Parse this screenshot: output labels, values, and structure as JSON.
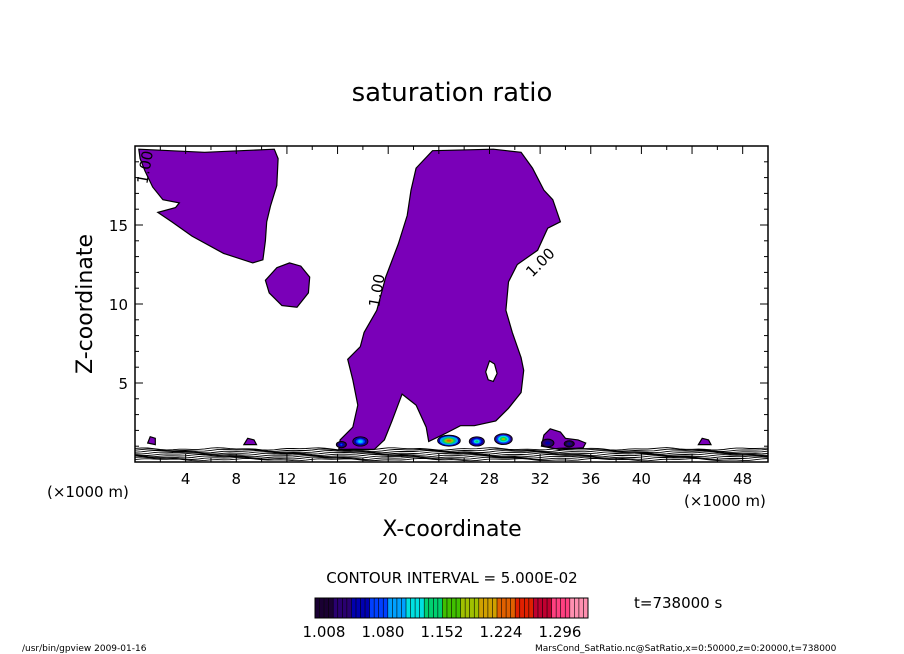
{
  "chart_data": {
    "type": "heatmap",
    "title": "saturation ratio",
    "xlabel": "X-coordinate",
    "ylabel": "Z-coordinate",
    "x_unit_left": "(×1000 m)",
    "x_unit_right": "(×1000 m)",
    "xlim": [
      0,
      50
    ],
    "ylim": [
      0,
      20
    ],
    "x_ticks": [
      4,
      8,
      12,
      16,
      20,
      24,
      28,
      32,
      36,
      40,
      44,
      48
    ],
    "y_ticks": [
      5,
      10,
      15
    ],
    "contour_labels": [
      {
        "text": "1.00",
        "x": 1.2,
        "z": 18.6,
        "angle": -80
      },
      {
        "text": "1.00",
        "x": 19.5,
        "z": 10.8,
        "angle": -80
      },
      {
        "text": "1.00",
        "x": 32.3,
        "z": 12.4,
        "angle": -45
      }
    ],
    "regions": [
      {
        "level": 1.0,
        "color": "#7a00b8",
        "points": [
          [
            0.3,
            19.8
          ],
          [
            5.5,
            19.6
          ],
          [
            11,
            19.8
          ],
          [
            11.3,
            19.2
          ],
          [
            11.2,
            17.5
          ],
          [
            10.7,
            16.2
          ],
          [
            10.4,
            15.2
          ],
          [
            10.3,
            14
          ],
          [
            10.1,
            12.8
          ],
          [
            9.3,
            12.6
          ],
          [
            7,
            13.2
          ],
          [
            4.5,
            14.3
          ],
          [
            2.9,
            15.2
          ],
          [
            1.8,
            15.8
          ],
          [
            3.2,
            16.1
          ],
          [
            3.5,
            16.4
          ],
          [
            2.2,
            16.6
          ],
          [
            1.4,
            17.4
          ],
          [
            0.8,
            18.4
          ],
          [
            0.4,
            19.2
          ]
        ]
      },
      {
        "level": 1.0,
        "color": "#7a00b8",
        "points": [
          [
            11.2,
            12.3
          ],
          [
            12.2,
            12.6
          ],
          [
            13.1,
            12.4
          ],
          [
            13.8,
            11.7
          ],
          [
            13.7,
            10.7
          ],
          [
            12.8,
            9.8
          ],
          [
            11.6,
            9.9
          ],
          [
            10.6,
            10.7
          ],
          [
            10.3,
            11.5
          ]
        ]
      },
      {
        "level": 1.0,
        "color": "#7a00b8",
        "points": [
          [
            22.2,
            18.6
          ],
          [
            23.5,
            19.7
          ],
          [
            28.3,
            19.8
          ],
          [
            30.5,
            19.6
          ],
          [
            31.4,
            18.6
          ],
          [
            32.3,
            17.2
          ],
          [
            33,
            16.6
          ],
          [
            33.6,
            15.2
          ],
          [
            32.6,
            14.8
          ],
          [
            31.8,
            13.4
          ],
          [
            30.2,
            12.5
          ],
          [
            29.5,
            11.4
          ],
          [
            29.3,
            9.6
          ],
          [
            29.8,
            8.2
          ],
          [
            30.5,
            6.6
          ],
          [
            30.7,
            5.8
          ],
          [
            30.5,
            4.4
          ],
          [
            29.5,
            3.4
          ],
          [
            28.5,
            2.6
          ],
          [
            26.8,
            2.3
          ],
          [
            25.7,
            2.3
          ],
          [
            24.5,
            1.8
          ],
          [
            23.2,
            1.3
          ],
          [
            23,
            2.2
          ],
          [
            22.2,
            3.6
          ],
          [
            21.1,
            4.3
          ],
          [
            20.3,
            2.6
          ],
          [
            19.7,
            1.4
          ],
          [
            18.9,
            0.8
          ],
          [
            16.1,
            0.8
          ],
          [
            16.2,
            1.4
          ],
          [
            17.2,
            2.2
          ],
          [
            17.6,
            3.6
          ],
          [
            17.2,
            5.2
          ],
          [
            16.8,
            6.5
          ],
          [
            17.8,
            7.3
          ],
          [
            18.1,
            8.2
          ],
          [
            19.1,
            9.6
          ],
          [
            19.8,
            11.7
          ],
          [
            20.8,
            13.8
          ],
          [
            21.5,
            15.6
          ],
          [
            21.8,
            17.2
          ]
        ]
      },
      {
        "level": 1.0,
        "color": "#ffffff",
        "points": [
          [
            28,
            6.4
          ],
          [
            28.4,
            6.2
          ],
          [
            28.6,
            5.6
          ],
          [
            28.3,
            5.1
          ],
          [
            27.9,
            5.2
          ],
          [
            27.7,
            5.7
          ]
        ]
      },
      {
        "level": 1.0,
        "color": "#7a00b8",
        "points": [
          [
            32.1,
            1
          ],
          [
            32.3,
            1.7
          ],
          [
            32.8,
            2.1
          ],
          [
            33.6,
            1.9
          ],
          [
            34,
            1.5
          ],
          [
            35,
            1.4
          ],
          [
            35.6,
            1.2
          ],
          [
            35.4,
            0.9
          ],
          [
            33.5,
            0.8
          ]
        ]
      },
      {
        "level": 1.0,
        "color": "#7a00b8",
        "points": [
          [
            1,
            1.2
          ],
          [
            1.2,
            1.6
          ],
          [
            1.6,
            1.5
          ],
          [
            1.6,
            1.1
          ]
        ]
      },
      {
        "level": 1.0,
        "color": "#7a00b8",
        "points": [
          [
            8.6,
            1.1
          ],
          [
            8.9,
            1.5
          ],
          [
            9.4,
            1.4
          ],
          [
            9.6,
            1.1
          ]
        ]
      },
      {
        "level": 1.0,
        "color": "#7a00b8",
        "points": [
          [
            44.5,
            1.1
          ],
          [
            44.8,
            1.5
          ],
          [
            45.3,
            1.4
          ],
          [
            45.5,
            1.1
          ]
        ]
      }
    ],
    "peaks": [
      {
        "x": 24.8,
        "z": 1.35,
        "rx": 0.9,
        "ry": 0.35,
        "max": 1.24
      },
      {
        "x": 27.0,
        "z": 1.3,
        "rx": 0.6,
        "ry": 0.3,
        "max": 1.15
      },
      {
        "x": 29.1,
        "z": 1.45,
        "rx": 0.7,
        "ry": 0.35,
        "max": 1.2
      },
      {
        "x": 17.8,
        "z": 1.3,
        "rx": 0.6,
        "ry": 0.3,
        "max": 1.12
      },
      {
        "x": 16.3,
        "z": 1.1,
        "rx": 0.4,
        "ry": 0.2,
        "max": 1.08
      },
      {
        "x": 32.6,
        "z": 1.2,
        "rx": 0.5,
        "ry": 0.25,
        "max": 1.06
      },
      {
        "x": 34.3,
        "z": 1.15,
        "rx": 0.4,
        "ry": 0.2,
        "max": 1.05
      }
    ],
    "colorbar": {
      "min": 1.0,
      "max": 1.35,
      "tick_labels": [
        "1.008",
        "1.080",
        "1.152",
        "1.224",
        "1.296"
      ],
      "colors": [
        "#1a0033",
        "#2a0070",
        "#0000b0",
        "#0040ff",
        "#00a0ff",
        "#00e0e0",
        "#00d070",
        "#40c000",
        "#a0c000",
        "#d0a000",
        "#e06000",
        "#e02000",
        "#c00030",
        "#ff4080",
        "#ff90b0"
      ]
    },
    "contour_interval_text": "CONTOUR INTERVAL = 5.000E-02",
    "time_text": "t=738000 s",
    "footer_left": "/usr/bin/gpview  2009-01-16",
    "footer_right": "MarsCond_SatRatio.nc@SatRatio,x=0:50000,z=0:20000,t=738000"
  }
}
